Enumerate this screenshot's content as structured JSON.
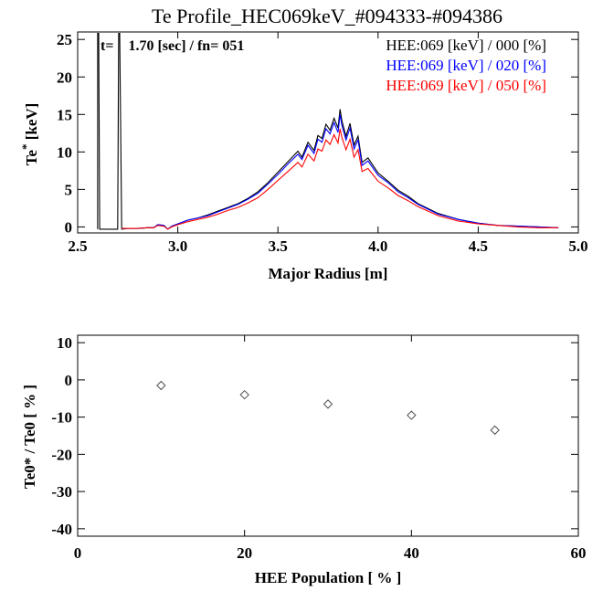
{
  "chart_data": [
    {
      "type": "line",
      "title": "Te Profile_HEC069keV_#094333-#094386",
      "annotation": "t=    1.70 [sec] / fn= 051",
      "xlabel": "Major Radius [m]",
      "ylabel": "Te* [keV]",
      "xlim": [
        2.5,
        5.0
      ],
      "ylim": [
        -0.8,
        26
      ],
      "xticks": [
        "2.5",
        "3.0",
        "3.5",
        "4.0",
        "4.5",
        "5.0"
      ],
      "yticks": [
        "0",
        "5",
        "10",
        "15",
        "20",
        "25"
      ],
      "legend_position": "top-right",
      "series": [
        {
          "name": "HEE:069 [keV] / 000 [%]",
          "color": "#000000",
          "x": [
            2.6,
            2.6,
            2.605,
            2.61,
            2.7,
            2.705,
            2.71,
            2.72,
            2.75,
            2.8,
            2.85,
            2.88,
            2.9,
            2.93,
            2.95,
            2.97,
            3.0,
            3.05,
            3.1,
            3.15,
            3.2,
            3.25,
            3.3,
            3.35,
            3.4,
            3.45,
            3.5,
            3.55,
            3.6,
            3.62,
            3.65,
            3.68,
            3.7,
            3.72,
            3.74,
            3.76,
            3.78,
            3.8,
            3.81,
            3.82,
            3.84,
            3.86,
            3.88,
            3.9,
            3.92,
            3.95,
            4.0,
            4.05,
            4.1,
            4.15,
            4.2,
            4.3,
            4.4,
            4.5,
            4.6,
            4.7,
            4.8,
            4.9
          ],
          "y": [
            -0.3,
            25.8,
            25.8,
            -0.3,
            -0.3,
            25.8,
            25.8,
            -0.3,
            -0.2,
            -0.2,
            -0.1,
            -0.1,
            0.3,
            0.2,
            -0.3,
            0.1,
            0.4,
            0.9,
            1.2,
            1.6,
            2.1,
            2.6,
            3.1,
            3.8,
            4.7,
            5.9,
            7.3,
            8.7,
            10.1,
            9.3,
            11.3,
            10.2,
            12.2,
            11.8,
            13.7,
            12.9,
            14.5,
            13.2,
            15.7,
            14.1,
            12.1,
            13.8,
            10.9,
            12.1,
            8.6,
            9.2,
            7.2,
            6.1,
            4.9,
            4.1,
            3.1,
            1.8,
            1.0,
            0.5,
            0.2,
            0.1,
            0.0,
            -0.1
          ]
        },
        {
          "name": "HEE:069 [keV] / 020 [%]",
          "color": "#0000ff",
          "x": [
            2.72,
            2.75,
            2.8,
            2.85,
            2.88,
            2.9,
            2.93,
            2.95,
            2.97,
            3.0,
            3.05,
            3.1,
            3.15,
            3.2,
            3.25,
            3.3,
            3.35,
            3.4,
            3.45,
            3.5,
            3.55,
            3.6,
            3.62,
            3.65,
            3.68,
            3.7,
            3.72,
            3.74,
            3.76,
            3.78,
            3.8,
            3.81,
            3.82,
            3.84,
            3.86,
            3.88,
            3.9,
            3.92,
            3.95,
            4.0,
            4.05,
            4.1,
            4.15,
            4.2,
            4.3,
            4.4,
            4.5,
            4.6,
            4.7,
            4.8,
            4.9
          ],
          "y": [
            -0.2,
            -0.2,
            -0.2,
            -0.1,
            -0.1,
            0.3,
            0.2,
            -0.3,
            0.1,
            0.4,
            0.9,
            1.2,
            1.5,
            2.0,
            2.5,
            3.0,
            3.7,
            4.5,
            5.7,
            7.0,
            8.4,
            9.7,
            9.0,
            10.9,
            9.8,
            11.7,
            11.3,
            13.1,
            12.4,
            13.9,
            12.6,
            15.0,
            13.5,
            11.6,
            13.2,
            10.4,
            11.6,
            8.2,
            8.8,
            6.9,
            5.9,
            4.7,
            3.9,
            3.0,
            1.7,
            1.0,
            0.5,
            0.2,
            0.1,
            0.0,
            -0.1
          ]
        },
        {
          "name": "HEE:069 [keV] / 050 [%]",
          "color": "#ff0000",
          "x": [
            2.72,
            2.75,
            2.8,
            2.85,
            2.88,
            2.9,
            2.93,
            2.95,
            2.97,
            3.0,
            3.05,
            3.1,
            3.15,
            3.2,
            3.25,
            3.3,
            3.35,
            3.4,
            3.45,
            3.5,
            3.55,
            3.6,
            3.62,
            3.65,
            3.68,
            3.7,
            3.72,
            3.74,
            3.76,
            3.78,
            3.8,
            3.81,
            3.82,
            3.84,
            3.86,
            3.88,
            3.9,
            3.92,
            3.95,
            4.0,
            4.05,
            4.1,
            4.15,
            4.2,
            4.3,
            4.4,
            4.5,
            4.6,
            4.7,
            4.8,
            4.9
          ],
          "y": [
            -0.2,
            -0.2,
            -0.2,
            -0.1,
            -0.1,
            0.2,
            0.1,
            -0.3,
            0.0,
            0.3,
            0.7,
            1.0,
            1.3,
            1.7,
            2.2,
            2.6,
            3.2,
            3.9,
            5.0,
            6.2,
            7.4,
            8.6,
            8.0,
            9.7,
            8.8,
            10.4,
            10.1,
            11.6,
            11.0,
            12.3,
            11.2,
            13.1,
            11.9,
            10.3,
            11.7,
            9.3,
            10.3,
            7.4,
            7.8,
            6.1,
            5.2,
            4.2,
            3.5,
            2.7,
            1.5,
            0.8,
            0.4,
            0.2,
            0.0,
            -0.1,
            -0.1
          ]
        }
      ]
    },
    {
      "type": "scatter",
      "xlabel": "HEE Population [ % ]",
      "ylabel": "Te0* / Te0 [ % ]",
      "xlim": [
        0,
        60
      ],
      "ylim": [
        -42,
        12
      ],
      "xticks": [
        "0",
        "20",
        "40",
        "60"
      ],
      "yticks": [
        "10",
        "0",
        "-10",
        "-20",
        "-30",
        "-40"
      ],
      "marker": "diamond",
      "series": [
        {
          "x": [
            10,
            20,
            30,
            40,
            50
          ],
          "y": [
            -1.5,
            -4.0,
            -6.5,
            -9.5,
            -13.5
          ],
          "color": "#505050"
        }
      ]
    }
  ]
}
